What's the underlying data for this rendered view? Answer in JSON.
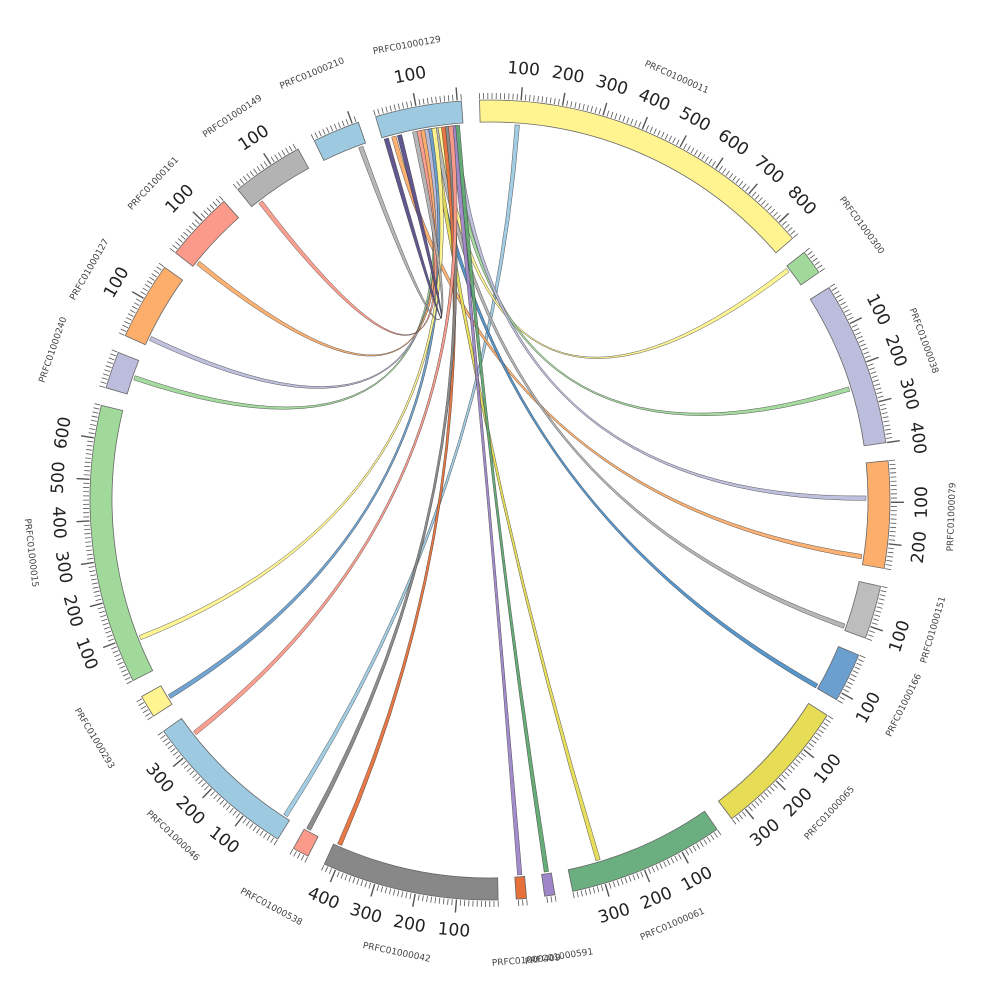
{
  "diagram": {
    "type": "circos",
    "segments": [
      {
        "name": "PRFC01000011",
        "color": "#fff48f",
        "length": 850,
        "tick_labels": [
          "100",
          "200",
          "300",
          "400",
          "500",
          "600",
          "700",
          "800"
        ]
      },
      {
        "name": "PRFC01000300",
        "color": "#a1d99b",
        "length": 60,
        "tick_labels": []
      },
      {
        "name": "PRFC01000038",
        "color": "#bcbddc",
        "length": 400,
        "tick_labels": [
          "100",
          "200",
          "300",
          "400"
        ]
      },
      {
        "name": "PRFC01000079",
        "color": "#fdae6b",
        "length": 260,
        "tick_labels": [
          "100",
          "200"
        ]
      },
      {
        "name": "PRFC01000151",
        "color": "#bdbdbd",
        "length": 130,
        "tick_labels": [
          "100"
        ]
      },
      {
        "name": "PRFC01000166",
        "color": "#6a9fd0",
        "length": 120,
        "tick_labels": [
          "100"
        ]
      },
      {
        "name": "PRFC01000065",
        "color": "#e6dc55",
        "length": 340,
        "tick_labels": [
          "100",
          "200",
          "300"
        ]
      },
      {
        "name": "PRFC01000061",
        "color": "#6baf80",
        "length": 380,
        "tick_labels": [
          "100",
          "200",
          "300"
        ]
      },
      {
        "name": "PRFC01000591",
        "color": "#9e86c8",
        "length": 25,
        "tick_labels": []
      },
      {
        "name": "PRFC01000409",
        "color": "#e6703a",
        "length": 25,
        "tick_labels": []
      },
      {
        "name": "PRFC01000042",
        "color": "#888888",
        "length": 430,
        "tick_labels": [
          "100",
          "200",
          "300",
          "400"
        ]
      },
      {
        "name": "PRFC01000538",
        "color": "#fb9a8a",
        "length": 40,
        "tick_labels": []
      },
      {
        "name": "PRFC01000046",
        "color": "#9ecae1",
        "length": 380,
        "tick_labels": [
          "100",
          "200",
          "300"
        ]
      },
      {
        "name": "PRFC01000293",
        "color": "#fff48f",
        "length": 55,
        "tick_labels": []
      },
      {
        "name": "PRFC01000015",
        "color": "#a1d99b",
        "length": 680,
        "tick_labels": [
          "100",
          "200",
          "300",
          "400",
          "500",
          "600"
        ]
      },
      {
        "name": "PRFC01000240",
        "color": "#bcbddc",
        "length": 90,
        "tick_labels": []
      },
      {
        "name": "PRFC01000127",
        "color": "#fdae6b",
        "length": 190,
        "tick_labels": [
          "100"
        ]
      },
      {
        "name": "PRFC01000161",
        "color": "#fb9a8a",
        "length": 170,
        "tick_labels": [
          "100"
        ]
      },
      {
        "name": "PRFC01000149",
        "color": "#b3b3b3",
        "length": 175,
        "tick_labels": [
          "100"
        ]
      },
      {
        "name": "PRFC01000210",
        "color": "#9ecae1",
        "length": 115,
        "tick_labels": []
      },
      {
        "name": "PRFC01000129",
        "color": "#9ecae1",
        "length": 210,
        "tick_labels": [
          "100"
        ]
      }
    ],
    "links": [
      {
        "from": [
          "PRFC01000011",
          95
        ],
        "to": [
          "PRFC01000046",
          15
        ],
        "color": "#9ecae1"
      },
      {
        "from": [
          "PRFC01000129",
          150
        ],
        "to": [
          "PRFC01000300",
          10
        ],
        "color": "#fff48f"
      },
      {
        "from": [
          "PRFC01000129",
          175
        ],
        "to": [
          "PRFC01000038",
          250
        ],
        "color": "#a1d99b"
      },
      {
        "from": [
          "PRFC01000129",
          190
        ],
        "to": [
          "PRFC01000079",
          90
        ],
        "color": "#bcbddc"
      },
      {
        "from": [
          "PRFC01000129",
          30
        ],
        "to": [
          "PRFC01000079",
          240
        ],
        "color": "#fdae6b"
      },
      {
        "from": [
          "PRFC01000129",
          140
        ],
        "to": [
          "PRFC01000151",
          120
        ],
        "color": "#b3b3b3"
      },
      {
        "from": [
          "PRFC01000129",
          120
        ],
        "to": [
          "PRFC01000166",
          115
        ],
        "color": "#4f8fc6"
      },
      {
        "from": [
          "PRFC01000129",
          130
        ],
        "to": [
          "PRFC01000061",
          300
        ],
        "color": "#e6dc55"
      },
      {
        "from": [
          "PRFC01000129",
          195
        ],
        "to": [
          "PRFC01000591",
          12
        ],
        "color": "#5fa870"
      },
      {
        "from": [
          "PRFC01000129",
          185
        ],
        "to": [
          "PRFC01000409",
          12
        ],
        "color": "#9e86c8"
      },
      {
        "from": [
          "PRFC01000129",
          160
        ],
        "to": [
          "PRFC01000042",
          415
        ],
        "color": "#e6703a"
      },
      {
        "from": [
          "PRFC01000129",
          170
        ],
        "to": [
          "PRFC01000538",
          30
        ],
        "color": "#888888"
      },
      {
        "from": [
          "PRFC01000129",
          178
        ],
        "to": [
          "PRFC01000046",
          330
        ],
        "color": "#fb9a8a"
      },
      {
        "from": [
          "PRFC01000129",
          125
        ],
        "to": [
          "PRFC01000293",
          20
        ],
        "color": "#6a9fd0"
      },
      {
        "from": [
          "PRFC01000129",
          135
        ],
        "to": [
          "PRFC01000015",
          90
        ],
        "color": "#fff48f"
      },
      {
        "from": [
          "PRFC01000129",
          110
        ],
        "to": [
          "PRFC01000240",
          45
        ],
        "color": "#a1d99b"
      },
      {
        "from": [
          "PRFC01000129",
          115
        ],
        "to": [
          "PRFC01000127",
          20
        ],
        "color": "#bcbddc"
      },
      {
        "from": [
          "PRFC01000129",
          105
        ],
        "to": [
          "PRFC01000161",
          15
        ],
        "color": "#fdae6b"
      },
      {
        "from": [
          "PRFC01000129",
          95
        ],
        "to": [
          "PRFC01000149",
          25
        ],
        "color": "#fb9a8a"
      },
      {
        "from": [
          "PRFC01000129",
          85
        ],
        "to": [
          "PRFC01000210",
          100
        ],
        "color": "#b3b3b3"
      },
      {
        "from": [
          "PRFC01000129",
          45
        ],
        "to": [
          "PRFC01000129",
          10
        ],
        "color": "#5a4f8a"
      }
    ]
  }
}
